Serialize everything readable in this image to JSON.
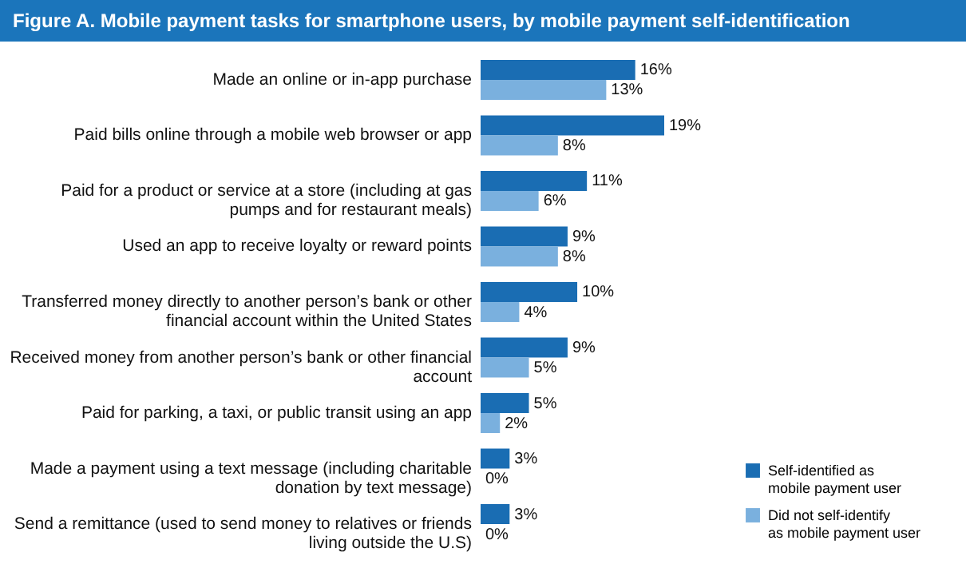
{
  "chart_data": {
    "type": "bar",
    "orientation": "horizontal",
    "title": "Figure A. Mobile payment tasks for smartphone users, by mobile payment self-identification",
    "categories": [
      "Made an online or in-app purchase",
      "Paid bills online through a mobile web browser or app",
      "Paid for a product or service at a store (including at gas pumps and for restaurant meals)",
      "Used an app to receive loyalty or reward points",
      "Transferred money directly to another person’s bank or other financial account within the United States",
      "Received money from another person’s bank or other financial account",
      "Paid for parking, a taxi, or public transit using an app",
      "Made a payment using a text message (including charitable donation by text message)",
      "Send a remittance (used to send money to relatives or friends living outside the U.S)"
    ],
    "series": [
      {
        "name": "Self-identified as mobile payment user",
        "color": "#1a6db3",
        "values": [
          16,
          19,
          11,
          9,
          10,
          9,
          5,
          3,
          3
        ],
        "value_labels": [
          "16%",
          "19%",
          "11%",
          "9%",
          "10%",
          "9%",
          "5%",
          "3%",
          "3%"
        ]
      },
      {
        "name": "Did not self-identify as mobile payment user",
        "color": "#7ab0de",
        "values": [
          13,
          8,
          6,
          8,
          4,
          5,
          2,
          0,
          0
        ],
        "value_labels": [
          "13%",
          "8%",
          "6%",
          "8%",
          "4%",
          "5%",
          "2%",
          "0%",
          "0%"
        ]
      }
    ],
    "legend": "bottom right"
  }
}
